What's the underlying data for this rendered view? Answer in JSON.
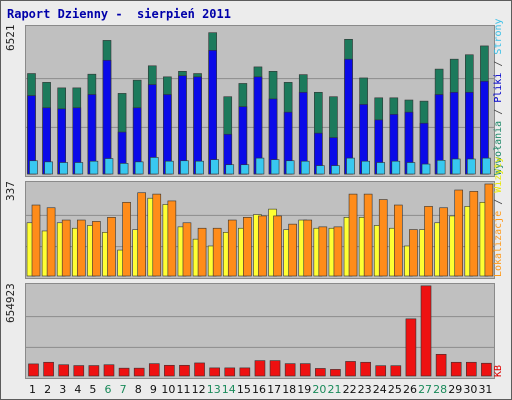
{
  "title": "Raport Dzienny -  sierpień 2011",
  "y_labels": {
    "top": "6521",
    "middle": "337",
    "bottom": "654923"
  },
  "legend": {
    "top": [
      {
        "text": "Wywołania",
        "color": "#1f8a6a"
      },
      {
        "text": " / ",
        "color": "#444444"
      },
      {
        "text": "Pliki",
        "color": "#0000cc"
      },
      {
        "text": " / ",
        "color": "#444444"
      },
      {
        "text": "Strony",
        "color": "#39c0e8"
      }
    ],
    "middle": [
      {
        "text": "Lokalizacje",
        "color": "#ff9a1a"
      },
      {
        "text": " / ",
        "color": "#444444"
      },
      {
        "text": "Wizyty",
        "color": "#e8e800"
      }
    ],
    "bottom": [
      {
        "text": "KB",
        "color": "#e00000"
      }
    ]
  },
  "colors": {
    "hits": "#1c7a5c",
    "files": "#0a0ae8",
    "pages": "#38c8f0",
    "sites": "#ff8c1a",
    "visits": "#ffff33",
    "kb": "#ee1111",
    "weekend_label": "#1a8a5a",
    "weekday_label": "#111111"
  },
  "chart_data": [
    {
      "type": "bar",
      "title": "",
      "categories": [
        "1",
        "2",
        "3",
        "4",
        "5",
        "6",
        "7",
        "8",
        "9",
        "10",
        "11",
        "12",
        "13",
        "14",
        "15",
        "16",
        "17",
        "18",
        "19",
        "20",
        "21",
        "22",
        "23",
        "24",
        "25",
        "26",
        "27",
        "28",
        "29",
        "30",
        "31"
      ],
      "weekend_days": [
        "6",
        "7",
        "13",
        "14",
        "20",
        "21",
        "27",
        "28"
      ],
      "ylim": [
        0,
        6521
      ],
      "series": [
        {
          "name": "Wywołania",
          "values": [
            4550,
            4150,
            3900,
            3900,
            4520,
            6050,
            3650,
            4250,
            4900,
            4400,
            4650,
            4550,
            6400,
            3500,
            4100,
            4850,
            4650,
            4150,
            4500,
            3700,
            3500,
            6100,
            4350,
            3450,
            3450,
            3350,
            3300,
            4750,
            5200,
            5400,
            5800
          ]
        },
        {
          "name": "Pliki",
          "values": [
            3550,
            3000,
            2950,
            3000,
            3600,
            5150,
            1900,
            3000,
            4050,
            3600,
            4450,
            4400,
            5600,
            1800,
            3050,
            4400,
            3400,
            2800,
            3700,
            1850,
            1650,
            5200,
            3150,
            2450,
            2700,
            2800,
            2300,
            3600,
            3700,
            3700,
            4200
          ]
        },
        {
          "name": "Strony",
          "values": [
            600,
            550,
            520,
            520,
            580,
            700,
            480,
            550,
            750,
            580,
            600,
            580,
            650,
            420,
            420,
            720,
            650,
            600,
            580,
            380,
            380,
            720,
            580,
            520,
            580,
            520,
            450,
            620,
            680,
            680,
            720
          ]
        }
      ]
    },
    {
      "type": "bar",
      "title": "",
      "categories": [
        "1",
        "2",
        "3",
        "4",
        "5",
        "6",
        "7",
        "8",
        "9",
        "10",
        "11",
        "12",
        "13",
        "14",
        "15",
        "16",
        "17",
        "18",
        "19",
        "20",
        "21",
        "22",
        "23",
        "24",
        "25",
        "26",
        "27",
        "28",
        "29",
        "30",
        "31"
      ],
      "ylim": [
        0,
        337
      ],
      "series": [
        {
          "name": "Lokalizacje",
          "values": [
            260,
            250,
            205,
            205,
            200,
            215,
            270,
            305,
            300,
            275,
            195,
            175,
            175,
            205,
            215,
            220,
            220,
            190,
            205,
            180,
            180,
            300,
            300,
            280,
            260,
            170,
            255,
            250,
            315,
            310,
            337
          ]
        },
        {
          "name": "Wizyty",
          "values": [
            195,
            165,
            195,
            175,
            185,
            160,
            95,
            170,
            285,
            262,
            180,
            135,
            110,
            160,
            175,
            225,
            245,
            170,
            205,
            175,
            175,
            215,
            215,
            185,
            175,
            110,
            170,
            195,
            220,
            255,
            270
          ]
        }
      ]
    },
    {
      "type": "bar",
      "title": "",
      "categories": [
        "1",
        "2",
        "3",
        "4",
        "5",
        "6",
        "7",
        "8",
        "9",
        "10",
        "11",
        "12",
        "13",
        "14",
        "15",
        "16",
        "17",
        "18",
        "19",
        "20",
        "21",
        "22",
        "23",
        "24",
        "25",
        "26",
        "27",
        "28",
        "29",
        "30",
        "31"
      ],
      "ylim": [
        0,
        654923
      ],
      "series": [
        {
          "name": "KB",
          "values": [
            88000,
            100000,
            82000,
            76000,
            76000,
            82000,
            57000,
            57000,
            90000,
            78000,
            78000,
            95000,
            59000,
            59000,
            59000,
            112000,
            112000,
            90000,
            90000,
            55000,
            48000,
            106000,
            100000,
            75000,
            75000,
            416000,
            656000,
            158000,
            100000,
            100000,
            93000
          ]
        }
      ]
    }
  ]
}
